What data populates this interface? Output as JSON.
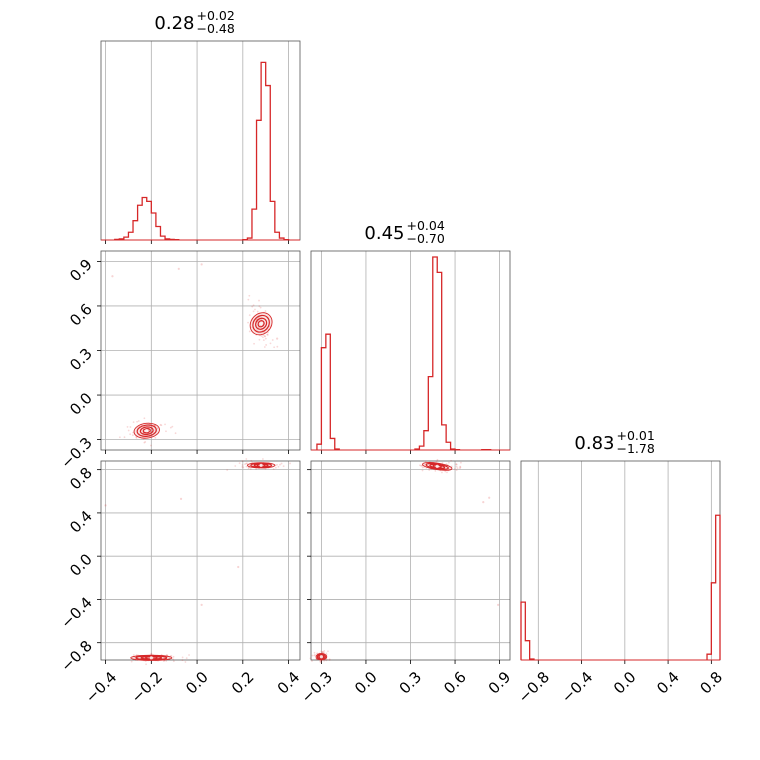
{
  "chart_data": {
    "type": "corner",
    "series_color": "#d62728",
    "grid": true,
    "parameters": [
      {
        "range": [
          -0.42,
          0.45
        ],
        "ticks": [
          -0.4,
          -0.2,
          0.0,
          0.2,
          0.4
        ],
        "tick_labels": [
          "−0.4",
          "−0.2",
          "0.0",
          "0.2",
          "0.4"
        ],
        "title": {
          "value": "0.28",
          "upper": "+0.02",
          "lower": "−0.48"
        },
        "histogram": {
          "bins": [
            -0.36,
            -0.34,
            -0.32,
            -0.3,
            -0.28,
            -0.26,
            -0.24,
            -0.22,
            -0.2,
            -0.18,
            -0.16,
            -0.14,
            -0.12,
            -0.1,
            0.2,
            0.22,
            0.24,
            0.26,
            0.28,
            0.3,
            0.32,
            0.34,
            0.36,
            0.38
          ],
          "counts": [
            0.003,
            0.006,
            0.015,
            0.04,
            0.1,
            0.18,
            0.22,
            0.2,
            0.14,
            0.07,
            0.02,
            0.006,
            0.003,
            0.002,
            0.002,
            0.01,
            0.16,
            0.62,
            0.92,
            0.8,
            0.2,
            0.04,
            0.01,
            0.002
          ]
        }
      },
      {
        "range": [
          -0.37,
          0.97
        ],
        "ticks": [
          -0.3,
          0.0,
          0.3,
          0.6,
          0.9
        ],
        "tick_labels": [
          "−0.3",
          "0.0",
          "0.3",
          "0.6",
          "0.9"
        ],
        "title": {
          "value": "0.45",
          "upper": "+0.04",
          "lower": "−0.70"
        },
        "histogram": {
          "bins": [
            -0.33,
            -0.3,
            -0.27,
            -0.24,
            -0.21,
            0.33,
            0.36,
            0.39,
            0.42,
            0.45,
            0.48,
            0.51,
            0.54,
            0.57,
            0.6,
            0.78,
            0.81
          ],
          "counts": [
            0.03,
            0.53,
            0.6,
            0.06,
            0.005,
            0.005,
            0.02,
            0.1,
            0.38,
            1.0,
            0.92,
            0.13,
            0.04,
            0.005,
            0.002,
            0.002,
            0.002
          ]
        }
      },
      {
        "range": [
          -0.96,
          0.88
        ],
        "ticks": [
          -0.8,
          -0.4,
          0.0,
          0.4,
          0.8
        ],
        "tick_labels": [
          "−0.8",
          "−0.4",
          "0.0",
          "0.4",
          "0.8"
        ],
        "title": {
          "value": "0.83",
          "upper": "+0.01",
          "lower": "−1.78"
        },
        "histogram": {
          "bins": [
            -0.96,
            -0.92,
            -0.88,
            0.76,
            0.8,
            0.84
          ],
          "counts": [
            0.3,
            0.1,
            0.005,
            0.03,
            0.4,
            0.75
          ]
        }
      }
    ],
    "pairs": [
      {
        "row": 1,
        "col": 0,
        "clusters": [
          {
            "x": -0.22,
            "y": -0.24,
            "sx": 0.028,
            "sy": 0.025,
            "tilt": 0.12
          },
          {
            "x": 0.28,
            "y": 0.48,
            "sx": 0.022,
            "sy": 0.04,
            "tilt": -0.75
          }
        ],
        "stray_points": [
          [
            -0.37,
            0.8
          ],
          [
            -0.08,
            0.85
          ],
          [
            0.02,
            0.88
          ],
          [
            0.35,
            0.38
          ]
        ]
      },
      {
        "row": 2,
        "col": 0,
        "clusters": [
          {
            "x": -0.2,
            "y": -0.94,
            "sx": 0.045,
            "sy": 0.012,
            "tilt": 0.0
          },
          {
            "x": 0.28,
            "y": 0.84,
            "sx": 0.03,
            "sy": 0.012,
            "tilt": 0.0
          }
        ],
        "stray_points": [
          [
            -0.4,
            0.47
          ],
          [
            -0.07,
            0.53
          ],
          [
            0.02,
            -0.45
          ],
          [
            0.18,
            -0.1
          ]
        ]
      },
      {
        "row": 2,
        "col": 1,
        "clusters": [
          {
            "x": -0.3,
            "y": -0.93,
            "sx": 0.018,
            "sy": 0.015,
            "tilt": 0.0
          },
          {
            "x": 0.48,
            "y": 0.83,
            "sx": 0.05,
            "sy": 0.015,
            "tilt": -0.15
          }
        ],
        "stray_points": [
          [
            0.83,
            0.54
          ],
          [
            0.89,
            -0.45
          ],
          [
            0.79,
            0.5
          ]
        ]
      }
    ]
  }
}
